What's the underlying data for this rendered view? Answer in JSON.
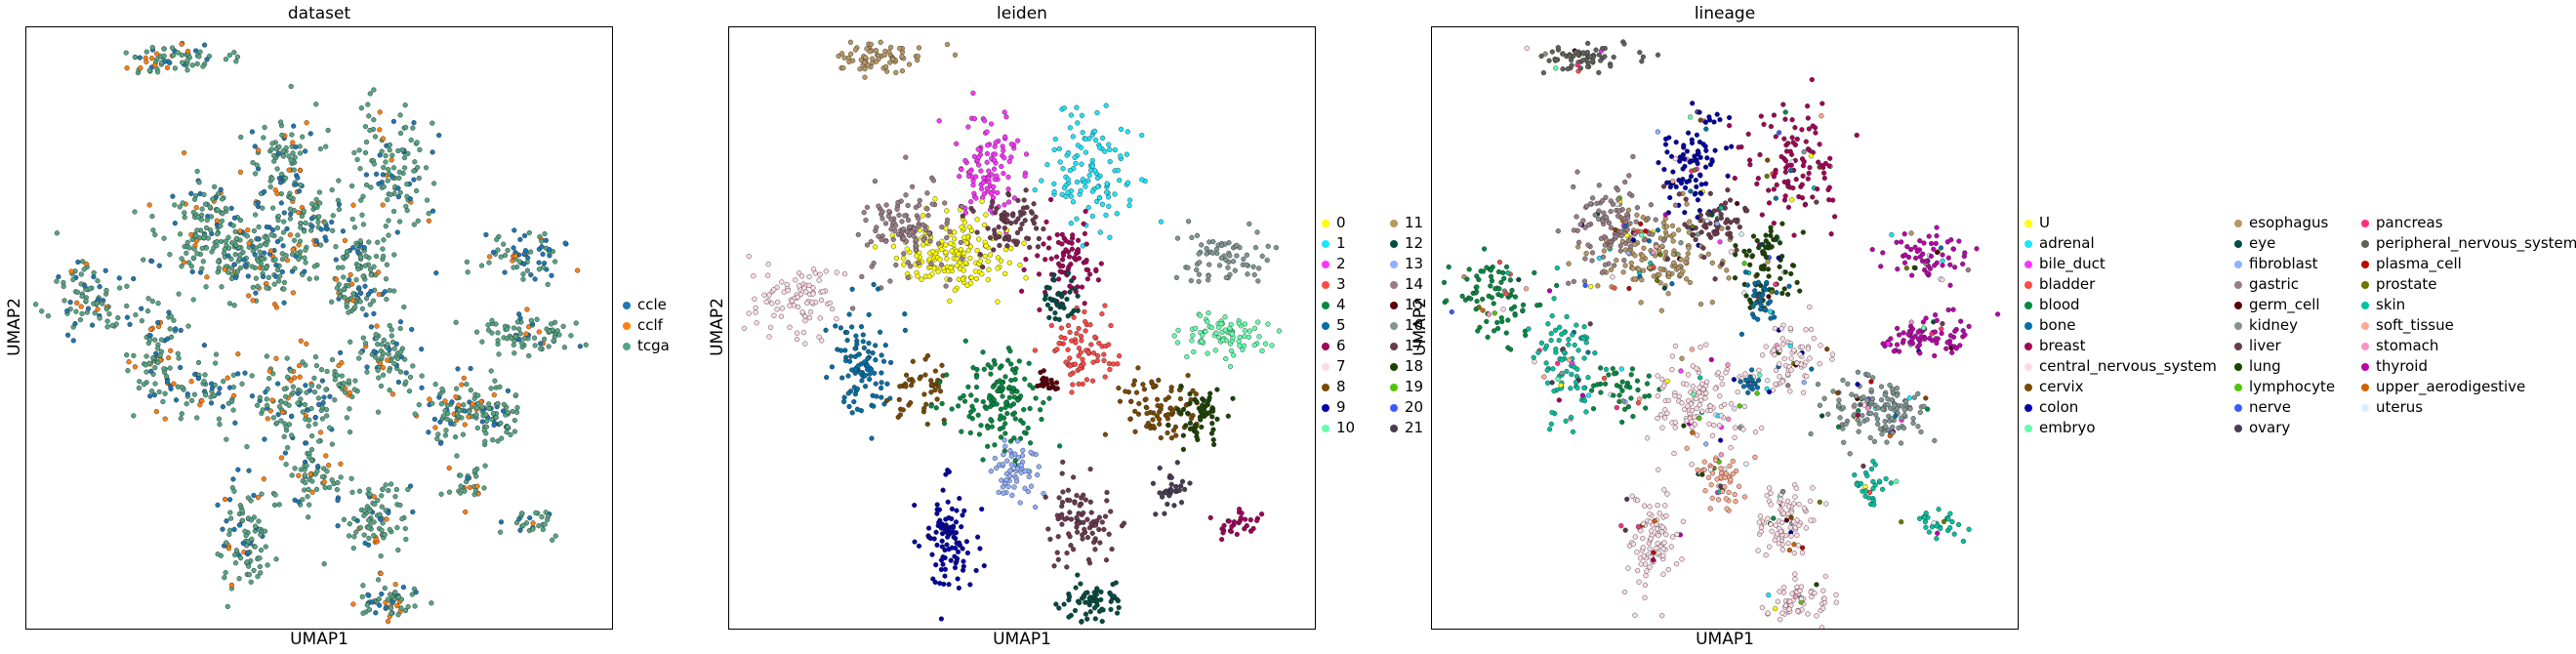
{
  "chart_data": [
    {
      "type": "scatter",
      "title": "dataset",
      "xlabel": "UMAP1",
      "ylabel": "UMAP2",
      "legend_position": "right",
      "categories": [
        {
          "name": "ccle",
          "color": "#1f77b4"
        },
        {
          "name": "cclf",
          "color": "#ff7f0e"
        },
        {
          "name": "tcga",
          "color": "#56a585"
        }
      ]
    },
    {
      "type": "scatter",
      "title": "leiden",
      "xlabel": "UMAP1",
      "ylabel": "UMAP2",
      "legend_position": "right",
      "categories": [
        {
          "name": "0",
          "color": "#ffff00"
        },
        {
          "name": "1",
          "color": "#1ce6ff"
        },
        {
          "name": "2",
          "color": "#ff34ff"
        },
        {
          "name": "3",
          "color": "#ff4a46"
        },
        {
          "name": "4",
          "color": "#008941"
        },
        {
          "name": "5",
          "color": "#006fa6"
        },
        {
          "name": "6",
          "color": "#a30059"
        },
        {
          "name": "7",
          "color": "#ffdbe5"
        },
        {
          "name": "8",
          "color": "#7a4900"
        },
        {
          "name": "9",
          "color": "#0000a6"
        },
        {
          "name": "10",
          "color": "#63ffac"
        },
        {
          "name": "11",
          "color": "#b79762"
        },
        {
          "name": "12",
          "color": "#004d43"
        },
        {
          "name": "13",
          "color": "#8fb0ff"
        },
        {
          "name": "14",
          "color": "#997d87"
        },
        {
          "name": "15",
          "color": "#5a0007"
        },
        {
          "name": "16",
          "color": "#809693"
        },
        {
          "name": "17",
          "color": "#6a3a4c"
        },
        {
          "name": "18",
          "color": "#1b4400"
        },
        {
          "name": "19",
          "color": "#4fc601"
        },
        {
          "name": "20",
          "color": "#3b5dff"
        },
        {
          "name": "21",
          "color": "#4a3b53"
        }
      ]
    },
    {
      "type": "scatter",
      "title": "lineage",
      "xlabel": "UMAP1",
      "ylabel": "UMAP2",
      "legend_position": "right",
      "categories": [
        {
          "name": "U",
          "color": "#ffff00"
        },
        {
          "name": "adrenal",
          "color": "#1ce6ff"
        },
        {
          "name": "bile_duct",
          "color": "#ff34ff"
        },
        {
          "name": "bladder",
          "color": "#ff4a46"
        },
        {
          "name": "blood",
          "color": "#008941"
        },
        {
          "name": "bone",
          "color": "#006fa6"
        },
        {
          "name": "breast",
          "color": "#a30059"
        },
        {
          "name": "central_nervous_system",
          "color": "#ffdbe5"
        },
        {
          "name": "cervix",
          "color": "#7a4900"
        },
        {
          "name": "colon",
          "color": "#0000a6"
        },
        {
          "name": "embryo",
          "color": "#63ffac"
        },
        {
          "name": "esophagus",
          "color": "#b79762"
        },
        {
          "name": "eye",
          "color": "#004d43"
        },
        {
          "name": "fibroblast",
          "color": "#8fb0ff"
        },
        {
          "name": "gastric",
          "color": "#997d87"
        },
        {
          "name": "germ_cell",
          "color": "#5a0007"
        },
        {
          "name": "kidney",
          "color": "#809693"
        },
        {
          "name": "liver",
          "color": "#6a3a4c"
        },
        {
          "name": "lung",
          "color": "#1b4400"
        },
        {
          "name": "lymphocyte",
          "color": "#4fc601"
        },
        {
          "name": "nerve",
          "color": "#3b5dff"
        },
        {
          "name": "ovary",
          "color": "#4a3b53"
        },
        {
          "name": "pancreas",
          "color": "#ff2f80"
        },
        {
          "name": "peripheral_nervous_system",
          "color": "#61615a"
        },
        {
          "name": "plasma_cell",
          "color": "#ba0900"
        },
        {
          "name": "prostate",
          "color": "#6b7900"
        },
        {
          "name": "skin",
          "color": "#00c2a0"
        },
        {
          "name": "soft_tissue",
          "color": "#ffaa92"
        },
        {
          "name": "stomach",
          "color": "#ff90c9"
        },
        {
          "name": "thyroid",
          "color": "#b903aa"
        },
        {
          "name": "upper_aerodigestive",
          "color": "#d16100"
        },
        {
          "name": "uterus",
          "color": "#ddefff"
        }
      ]
    }
  ]
}
